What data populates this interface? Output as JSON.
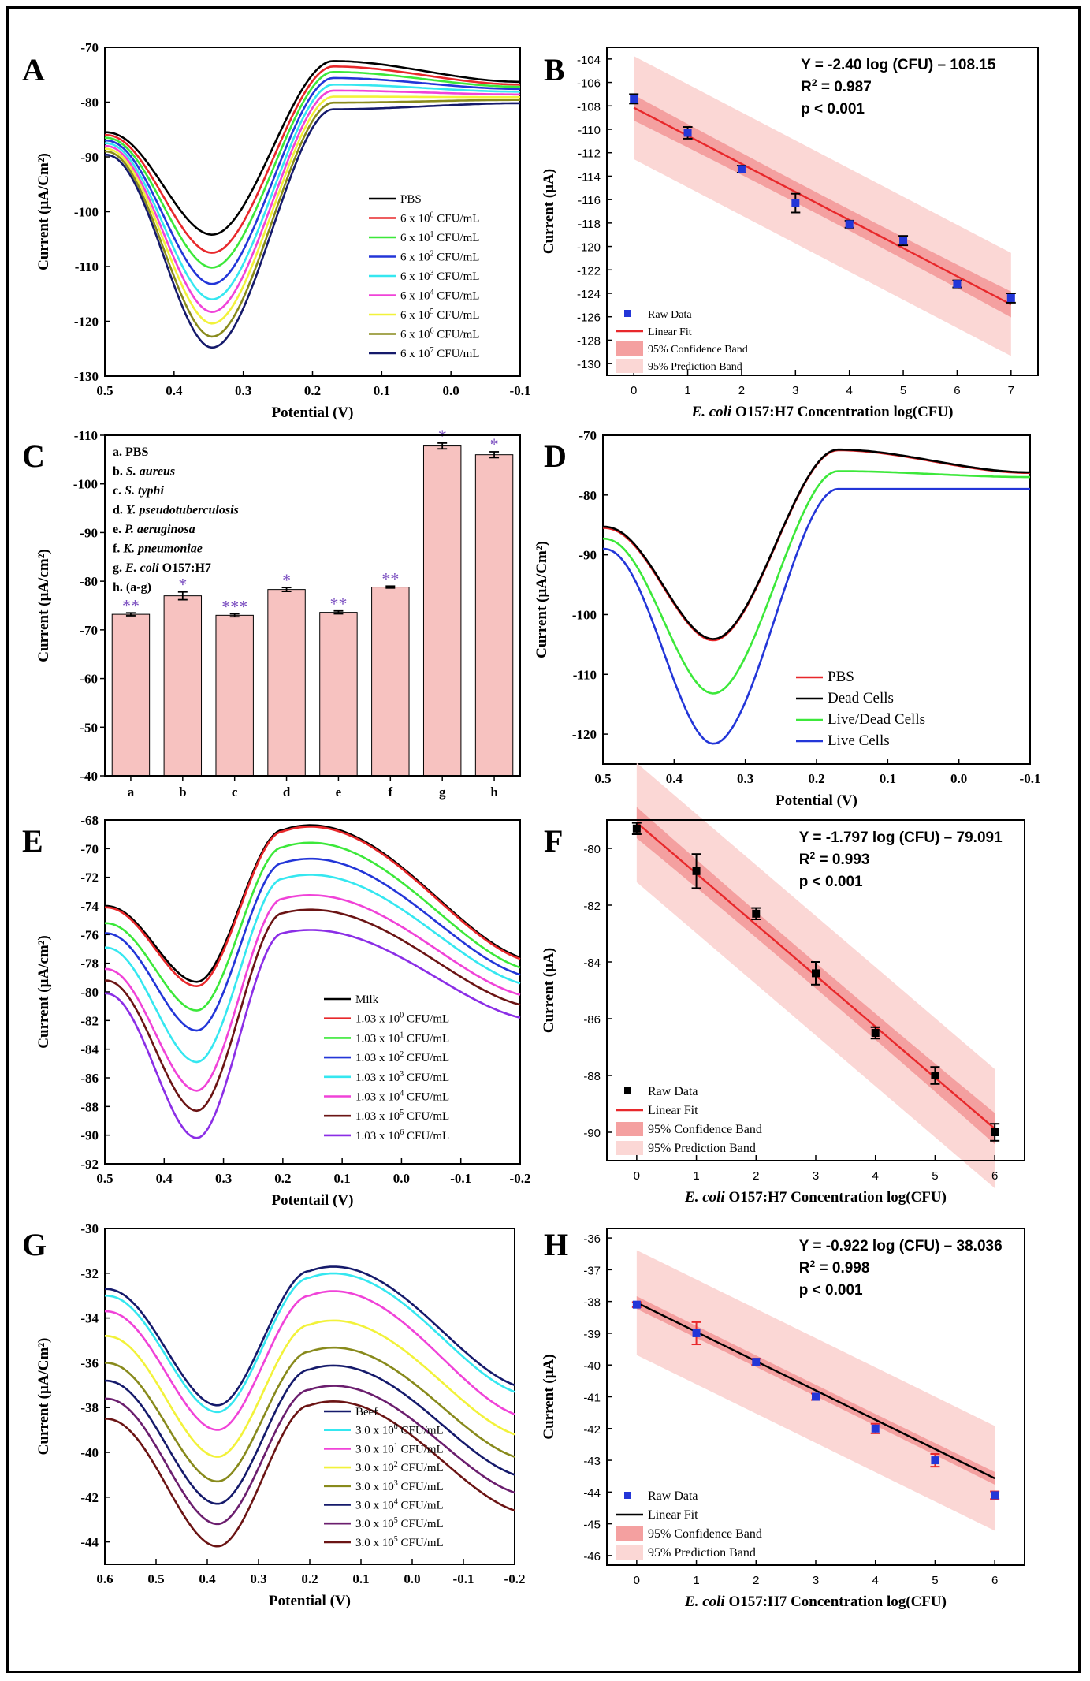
{
  "colors": {
    "black": "#000000",
    "red": "#e8282b",
    "green": "#3ce83a",
    "blue": "#2336d8",
    "cyan": "#35e7f0",
    "magenta": "#f043d8",
    "yellow": "#f2f23a",
    "olive": "#888a1c",
    "navy": "#151a6b",
    "brown": "#6b1414",
    "purple": "#8b2ee6",
    "darkpurple": "#6b1e6e",
    "barfill": "#f7c2c0",
    "bandDark": "#f4a0a0",
    "bandLight": "#fbd7d5",
    "star": "#7b4fc0"
  },
  "chart_data": [
    {
      "id": "A",
      "type": "line",
      "letter": "A",
      "xlabel": "Potential (V)",
      "ylabel": "Current (µA/Cm²)",
      "xlim": [
        0.5,
        -0.1
      ],
      "ylim": [
        -130,
        -70
      ],
      "xticks": [
        "0.5",
        "0.4",
        "0.3",
        "0.2",
        "0.1",
        "0.0",
        "-0.1"
      ],
      "yticks": [
        "-70",
        "-80",
        "-90",
        "-100",
        "-110",
        "-120",
        "-130"
      ],
      "series": [
        {
          "name": "PBS",
          "base": "",
          "exp": "",
          "unit": "",
          "color": "black",
          "start": -85.5,
          "peak": -104.2,
          "hump": -72.5,
          "end": -76.3
        },
        {
          "name": "",
          "base": "6 x 10",
          "exp": "0",
          "unit": " CFU/mL",
          "color": "red",
          "start": -86.0,
          "peak": -107.5,
          "hump": -73.5,
          "end": -76.8
        },
        {
          "name": "",
          "base": "6 x 10",
          "exp": "1",
          "unit": " CFU/mL",
          "color": "green",
          "start": -86.5,
          "peak": -110.2,
          "hump": -74.5,
          "end": -77.2
        },
        {
          "name": "",
          "base": "6 x 10",
          "exp": "2",
          "unit": " CFU/mL",
          "color": "blue",
          "start": -87.0,
          "peak": -113.2,
          "hump": -75.6,
          "end": -77.6
        },
        {
          "name": "",
          "base": "6 x 10",
          "exp": "3",
          "unit": " CFU/mL",
          "color": "cyan",
          "start": -87.5,
          "peak": -116.0,
          "hump": -76.8,
          "end": -78.1
        },
        {
          "name": "",
          "base": "6 x 10",
          "exp": "4",
          "unit": " CFU/mL",
          "color": "magenta",
          "start": -88.0,
          "peak": -118.3,
          "hump": -77.9,
          "end": -78.6
        },
        {
          "name": "",
          "base": "6 x 10",
          "exp": "5",
          "unit": " CFU/mL",
          "color": "yellow",
          "start": -88.5,
          "peak": -120.4,
          "hump": -79.0,
          "end": -79.1
        },
        {
          "name": "",
          "base": "6 x 10",
          "exp": "6",
          "unit": " CFU/mL",
          "color": "olive",
          "start": -89.0,
          "peak": -122.8,
          "hump": -80.1,
          "end": -79.6
        },
        {
          "name": "",
          "base": "6 x 10",
          "exp": "7",
          "unit": " CFU/mL",
          "color": "navy",
          "start": -89.6,
          "peak": -124.8,
          "hump": -81.3,
          "end": -80.2
        }
      ]
    },
    {
      "id": "B",
      "type": "scatter",
      "letter": "B",
      "xlabel_italic": "E. coli",
      "xlabel_rest": " O157:H7 Concentration log(CFU)",
      "ylabel": "Current (µA)",
      "xlim": [
        -0.5,
        7.5
      ],
      "ylim": [
        -131,
        -103
      ],
      "xticks": [
        "0",
        "1",
        "2",
        "3",
        "4",
        "5",
        "6",
        "7"
      ],
      "yticks": [
        "-104",
        "-106",
        "-108",
        "-110",
        "-112",
        "-114",
        "-116",
        "-118",
        "-120",
        "-122",
        "-124",
        "-126",
        "-128",
        "-130"
      ],
      "x": [
        0,
        1,
        2,
        3,
        4,
        5,
        6,
        7
      ],
      "y": [
        -107.4,
        -110.3,
        -113.4,
        -116.3,
        -118.1,
        -119.5,
        -123.2,
        -124.4
      ],
      "err": [
        0.4,
        0.5,
        0.3,
        0.8,
        0.3,
        0.4,
        0.3,
        0.4
      ],
      "slope": -2.4,
      "intercept": -108.15,
      "conf_halfwidth": [
        1.1,
        0.9
      ],
      "pred_halfwidth": 4.4,
      "equation": "Y = -2.40 log (CFU) – 108.15",
      "r2_label": "R",
      "r2_value": " = 0.987",
      "p_text": "p < 0.001",
      "legend": [
        "Raw Data",
        "Linear Fit",
        "95% Confidence Band",
        "95% Prediction Band"
      ],
      "marker_color": "blue",
      "line_color": "red"
    },
    {
      "id": "C",
      "type": "bar",
      "letter": "C",
      "ylabel": "Current (µA/cm²)",
      "ylim": [
        -40,
        -110
      ],
      "yticks": [
        "-110",
        "-100",
        "-90",
        "-80",
        "-70",
        "-60",
        "-50",
        "-40"
      ],
      "categories": [
        "a",
        "b",
        "c",
        "d",
        "e",
        "f",
        "g",
        "h"
      ],
      "values": [
        -73.2,
        -77.0,
        -73.0,
        -78.3,
        -73.6,
        -78.8,
        -107.8,
        -106.0
      ],
      "err": [
        0.3,
        0.8,
        0.3,
        0.4,
        0.3,
        0.2,
        0.6,
        0.6
      ],
      "stars": [
        "**",
        "*",
        "***",
        "*",
        "**",
        "**",
        "*",
        "*"
      ],
      "legend_lines": [
        {
          "prefix": "a. ",
          "italic": "",
          "text": "PBS"
        },
        {
          "prefix": "b. ",
          "italic": "S. aureus",
          "text": ""
        },
        {
          "prefix": "c. ",
          "italic": "S. typhi",
          "text": ""
        },
        {
          "prefix": "d. ",
          "italic": "Y. pseudotuberculosis",
          "text": ""
        },
        {
          "prefix": "e. ",
          "italic": "P. aeruginosa",
          "text": ""
        },
        {
          "prefix": "f. ",
          "italic": "K. pneumoniae",
          "text": ""
        },
        {
          "prefix": "g. ",
          "italic": "E. coli",
          "text": " O157:H7"
        },
        {
          "prefix": "h. ",
          "italic": "",
          "text": "(a-g)"
        }
      ]
    },
    {
      "id": "D",
      "type": "line",
      "letter": "D",
      "xlabel": "Potential (V)",
      "ylabel": "Current (µA/Cm²)",
      "xlim": [
        0.5,
        -0.1
      ],
      "ylim": [
        -125,
        -70
      ],
      "xticks": [
        "0.5",
        "0.4",
        "0.3",
        "0.2",
        "0.1",
        "0.0",
        "-0.1"
      ],
      "yticks": [
        "-70",
        "-80",
        "-90",
        "-100",
        "-110",
        "-120"
      ],
      "series": [
        {
          "name": "PBS",
          "color": "red",
          "start": -85.5,
          "peak": -104.3,
          "hump": -72.5,
          "end": -76.3
        },
        {
          "name": "Dead Cells",
          "color": "black",
          "start": -85.3,
          "peak": -104.1,
          "hump": -72.4,
          "end": -76.2
        },
        {
          "name": "Live/Dead Cells",
          "color": "green",
          "start": -87.3,
          "peak": -113.2,
          "hump": -76.0,
          "end": -77.0
        },
        {
          "name": "Live Cells",
          "color": "blue",
          "start": -89.0,
          "peak": -121.6,
          "hump": -79.0,
          "end": -79.0
        }
      ]
    },
    {
      "id": "E",
      "type": "line",
      "letter": "E",
      "xlabel": "Potentail (V)",
      "ylabel": "Current (µA/cm²)",
      "xlim": [
        0.5,
        -0.2
      ],
      "ylim": [
        -92,
        -68
      ],
      "xticks": [
        "0.5",
        "0.4",
        "0.3",
        "0.2",
        "0.1",
        "0.0",
        "-0.1",
        "-0.2"
      ],
      "yticks": [
        "-68",
        "-70",
        "-72",
        "-74",
        "-76",
        "-78",
        "-80",
        "-82",
        "-84",
        "-86",
        "-88",
        "-90",
        "-92"
      ],
      "series": [
        {
          "name": "Milk",
          "base": "",
          "exp": "",
          "unit": "",
          "color": "black",
          "start": -74.0,
          "peak": -79.3,
          "hump": -68.7,
          "end": -77.6
        },
        {
          "name": "",
          "base": "1.03 x 10",
          "exp": "0",
          "unit": " CFU/mL",
          "color": "red",
          "start": -74.1,
          "peak": -79.6,
          "hump": -68.8,
          "end": -77.7
        },
        {
          "name": "",
          "base": "1.03 x 10",
          "exp": "1",
          "unit": " CFU/mL",
          "color": "green",
          "start": -75.2,
          "peak": -81.3,
          "hump": -69.9,
          "end": -78.3
        },
        {
          "name": "",
          "base": "1.03 x 10",
          "exp": "2",
          "unit": " CFU/mL",
          "color": "blue",
          "start": -75.9,
          "peak": -82.7,
          "hump": -71.0,
          "end": -78.8
        },
        {
          "name": "",
          "base": "1.03 x 10",
          "exp": "3",
          "unit": " CFU/mL",
          "color": "cyan",
          "start": -76.9,
          "peak": -84.9,
          "hump": -72.1,
          "end": -79.4
        },
        {
          "name": "",
          "base": "1.03 x 10",
          "exp": "4",
          "unit": " CFU/mL",
          "color": "magenta",
          "start": -78.4,
          "peak": -86.9,
          "hump": -73.5,
          "end": -80.2
        },
        {
          "name": "",
          "base": "1.03 x 10",
          "exp": "5",
          "unit": " CFU/mL",
          "color": "brown",
          "start": -79.2,
          "peak": -88.3,
          "hump": -74.5,
          "end": -80.9
        },
        {
          "name": "",
          "base": "1.03 x 10",
          "exp": "6",
          "unit": " CFU/mL",
          "color": "purple",
          "start": -80.1,
          "peak": -90.2,
          "hump": -75.9,
          "end": -81.8
        }
      ]
    },
    {
      "id": "F",
      "type": "scatter",
      "letter": "F",
      "xlabel_italic": "E. coli",
      "xlabel_rest": " O157:H7 Concentration log(CFU)",
      "ylabel": "Current (µA)",
      "xlim": [
        -0.5,
        6.5
      ],
      "ylim": [
        -91,
        -79
      ],
      "xticks": [
        "0",
        "1",
        "2",
        "3",
        "4",
        "5",
        "6"
      ],
      "yticks": [
        "-80",
        "-82",
        "-84",
        "-86",
        "-88",
        "-90"
      ],
      "x": [
        0,
        1,
        2,
        3,
        4,
        5,
        6
      ],
      "y": [
        -79.3,
        -80.8,
        -82.3,
        -84.4,
        -86.5,
        -88.0,
        -90.0
      ],
      "err": [
        0.2,
        0.6,
        0.2,
        0.4,
        0.2,
        0.3,
        0.3
      ],
      "slope": -1.797,
      "intercept": -79.091,
      "conf_halfwidth": [
        0.55,
        0.45
      ],
      "pred_halfwidth": 2.1,
      "equation": "Y = -1.797 log (CFU) – 79.091",
      "r2_label": "R",
      "r2_value": " = 0.993",
      "p_text": "p < 0.001",
      "legend": [
        "Raw Data",
        "Linear Fit",
        "95% Confidence Band",
        "95% Prediction Band"
      ],
      "marker_color": "black",
      "line_color": "red"
    },
    {
      "id": "G",
      "type": "line",
      "letter": "G",
      "xlabel": "Potential (V)",
      "ylabel": "Current (µA/Cm²)",
      "xlim": [
        0.6,
        -0.2
      ],
      "ylim": [
        -45,
        -30
      ],
      "xticks": [
        "0.6",
        "0.5",
        "0.4",
        "0.3",
        "0.2",
        "0.1",
        "0.0",
        "-0.1",
        "-0.2"
      ],
      "yticks": [
        "-30",
        "-32",
        "-34",
        "-36",
        "-38",
        "-40",
        "-42",
        "-44"
      ],
      "series": [
        {
          "name": "Beef",
          "base": "",
          "exp": "",
          "unit": "",
          "color": "navy",
          "start": -32.7,
          "peak": -37.9,
          "hump": -31.9,
          "end": -37.0
        },
        {
          "name": "",
          "base": "3.0 x 10",
          "exp": "0",
          "unit": " CFU/mL",
          "color": "cyan",
          "start": -33.0,
          "peak": -38.2,
          "hump": -32.2,
          "end": -37.3
        },
        {
          "name": "",
          "base": "3.0 x 10",
          "exp": "1",
          "unit": " CFU/mL",
          "color": "magenta",
          "start": -33.7,
          "peak": -39.0,
          "hump": -33.0,
          "end": -38.3
        },
        {
          "name": "",
          "base": "3.0 x 10",
          "exp": "2",
          "unit": " CFU/mL",
          "color": "yellow",
          "start": -34.8,
          "peak": -40.2,
          "hump": -34.3,
          "end": -39.2
        },
        {
          "name": "",
          "base": "3.0 x 10",
          "exp": "3",
          "unit": " CFU/mL",
          "color": "olive",
          "start": -36.0,
          "peak": -41.3,
          "hump": -35.5,
          "end": -40.2
        },
        {
          "name": "",
          "base": "3.0 x 10",
          "exp": "4",
          "unit": " CFU/mL",
          "color": "navy",
          "start": -36.8,
          "peak": -42.3,
          "hump": -36.3,
          "end": -41.0
        },
        {
          "name": "",
          "base": "3.0 x 10",
          "exp": "5",
          "unit": " CFU/mL",
          "color": "darkpurple",
          "start": -37.6,
          "peak": -43.2,
          "hump": -37.2,
          "end": -41.8
        },
        {
          "name": "",
          "base": "3.0 x 10",
          "exp": "5",
          "unit": " CFU/mL",
          "color": "brown",
          "start": -38.5,
          "peak": -44.2,
          "hump": -37.9,
          "end": -42.6
        }
      ]
    },
    {
      "id": "H",
      "type": "scatter",
      "letter": "H",
      "xlabel_italic": "E. coli",
      "xlabel_rest": " O157:H7 Concentration log(CFU)",
      "ylabel": "Current (µA)",
      "xlim": [
        -0.5,
        6.5
      ],
      "ylim": [
        -46.3,
        -35.7
      ],
      "xticks": [
        "0",
        "1",
        "2",
        "3",
        "4",
        "5",
        "6"
      ],
      "yticks": [
        "-36",
        "-37",
        "-38",
        "-39",
        "-40",
        "-41",
        "-42",
        "-43",
        "-44",
        "-45",
        "-46"
      ],
      "x": [
        0,
        1,
        2,
        3,
        4,
        5,
        6
      ],
      "y": [
        -38.1,
        -39.0,
        -39.9,
        -41.0,
        -42.0,
        -43.0,
        -44.1
      ],
      "err": [
        0.08,
        0.35,
        0.1,
        0.1,
        0.15,
        0.2,
        0.12
      ],
      "slope": -0.922,
      "intercept": -38.036,
      "conf_halfwidth": [
        0.2,
        0.18
      ],
      "pred_halfwidth": 1.65,
      "equation": "Y = -0.922 log (CFU) – 38.036",
      "r2_label": "R",
      "r2_value": " = 0.998",
      "p_text": "p < 0.001",
      "legend": [
        "Raw Data",
        "Linear Fit",
        "95% Confidence Band",
        "95% Prediction Band"
      ],
      "marker_color": "blue",
      "line_color": "black"
    }
  ]
}
